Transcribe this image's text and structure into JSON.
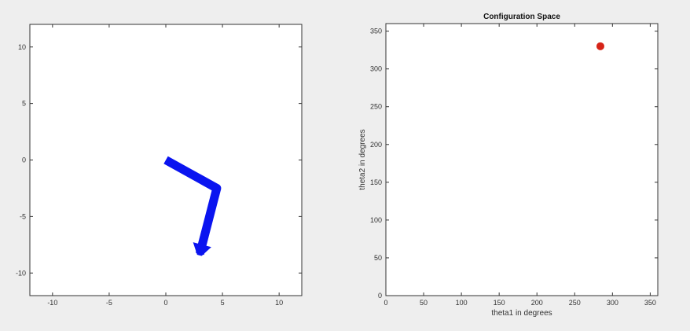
{
  "colors": {
    "figure_background": "#eeeeee",
    "axes_background": "#ffffff",
    "axis_color": "#333333",
    "arm_color": "#0a14f0",
    "point_color": "#d62418"
  },
  "chart_data": [
    {
      "type": "line",
      "title": "",
      "xlabel": "",
      "ylabel": "",
      "xlim": [
        -12,
        12
      ],
      "ylim": [
        -12,
        12
      ],
      "xticks": [
        -10,
        -5,
        0,
        5,
        10
      ],
      "yticks": [
        -10,
        -5,
        0,
        5,
        10
      ],
      "xtick_labels": [
        "-10",
        "-5",
        "0",
        "5",
        "10"
      ],
      "ytick_labels": [
        "-10",
        "-5",
        "0",
        "5",
        "10"
      ],
      "grid": false,
      "series": [
        {
          "x": [
            0,
            4.5,
            3
          ],
          "y": [
            0,
            -2.5,
            -8.3
          ]
        }
      ]
    },
    {
      "type": "scatter",
      "title": "Configuration Space",
      "xlabel": "theta1 in degrees",
      "ylabel": "theta2 in degrees",
      "xlim": [
        0,
        360
      ],
      "ylim": [
        0,
        360
      ],
      "xticks": [
        0,
        50,
        100,
        150,
        200,
        250,
        300,
        350
      ],
      "yticks": [
        0,
        50,
        100,
        150,
        200,
        250,
        300,
        350
      ],
      "xtick_labels": [
        "0",
        "50",
        "100",
        "150",
        "200",
        "250",
        "300",
        "350"
      ],
      "ytick_labels": [
        "0",
        "50",
        "100",
        "150",
        "200",
        "250",
        "300",
        "350"
      ],
      "grid": false,
      "series": [
        {
          "x": [
            284
          ],
          "y": [
            330
          ]
        }
      ]
    }
  ]
}
